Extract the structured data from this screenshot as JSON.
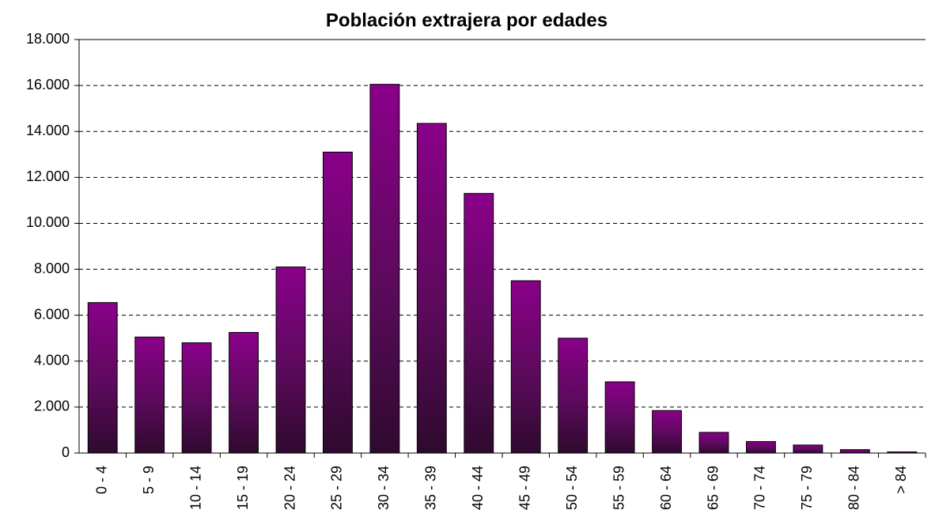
{
  "chart_data": {
    "type": "bar",
    "title": "Población extrajera por edades",
    "categories": [
      "0 - 4",
      "5 - 9",
      "10 - 14",
      "15 - 19",
      "20 - 24",
      "25 - 29",
      "30 - 34",
      "35 - 39",
      "40 - 44",
      "45 - 49",
      "50 - 54",
      "55 - 59",
      "60 - 64",
      "65 - 69",
      "70 - 74",
      "75 - 79",
      "80 - 84",
      "> 84"
    ],
    "values": [
      6550,
      5050,
      4800,
      5250,
      8100,
      13100,
      16050,
      14350,
      11300,
      7500,
      5000,
      3100,
      1850,
      900,
      500,
      350,
      150,
      50
    ],
    "color": "#800080",
    "ylim": [
      0,
      18000
    ],
    "yticks": [
      0,
      {
        "value": 2000,
        "label": "2.000"
      },
      {
        "value": 4000,
        "label": "4.000"
      },
      {
        "value": 6000,
        "label": "6.000"
      },
      {
        "value": 8000,
        "label": "8.000"
      },
      {
        "value": 10000,
        "label": "10.000"
      },
      {
        "value": 12000,
        "label": "12.000"
      },
      {
        "value": 14000,
        "label": "14.000"
      },
      {
        "value": 16000,
        "label": "16.000"
      },
      {
        "value": 18000,
        "label": "18.000"
      }
    ],
    "grid": true
  }
}
